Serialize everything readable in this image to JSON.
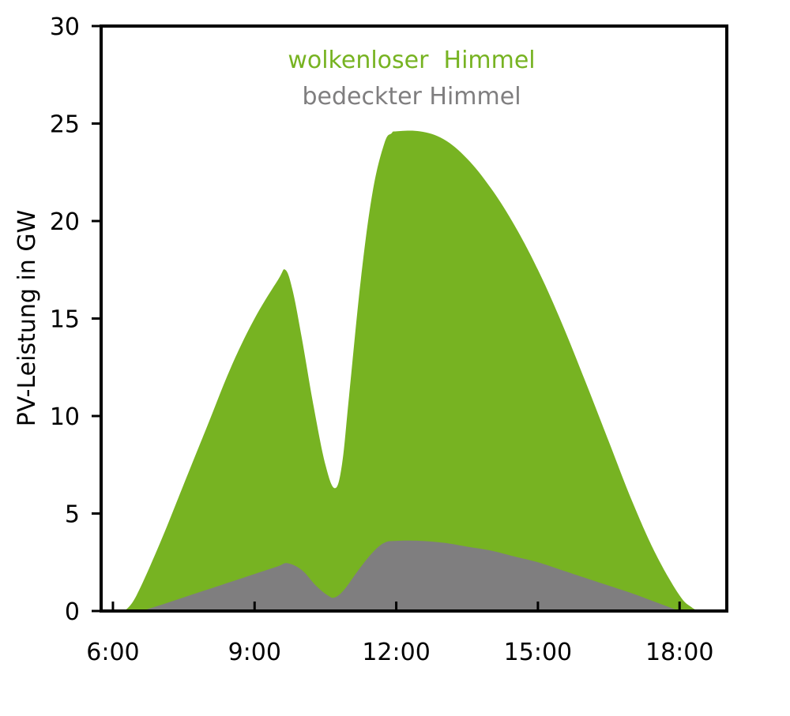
{
  "chart_data": {
    "type": "area",
    "title": "",
    "xlabel": "",
    "ylabel": "PV-Leistung in GW",
    "x_unit": "hour",
    "xlim": [
      5.75,
      19
    ],
    "ylim": [
      0,
      30
    ],
    "x_ticks": [
      6,
      9,
      12,
      15,
      18
    ],
    "x_tick_labels": [
      "6:00",
      "9:00",
      "12:00",
      "15:00",
      "18:00"
    ],
    "y_ticks": [
      0,
      5,
      10,
      15,
      20,
      25,
      30
    ],
    "y_tick_labels": [
      "0",
      "5",
      "10",
      "15",
      "20",
      "25",
      "30"
    ],
    "grid": false,
    "legend_position": "top-center",
    "series": [
      {
        "name": "wolkenloser  Himmel",
        "color": "#77b322",
        "x": [
          6.25,
          6.5,
          7.0,
          7.5,
          8.0,
          8.5,
          9.0,
          9.5,
          9.65,
          9.8,
          10.0,
          10.25,
          10.5,
          10.7,
          10.85,
          11.0,
          11.25,
          11.5,
          11.75,
          11.9,
          12.0,
          12.5,
          13.0,
          13.5,
          14.0,
          14.5,
          15.0,
          15.5,
          16.0,
          16.5,
          17.0,
          17.5,
          18.0,
          18.25,
          18.4
        ],
        "y": [
          0,
          0.8,
          3.5,
          6.5,
          9.5,
          12.5,
          15.0,
          17.0,
          17.5,
          16.5,
          14.0,
          10.5,
          7.5,
          6.3,
          7.5,
          11.0,
          17.0,
          21.5,
          24.0,
          24.5,
          24.6,
          24.6,
          24.2,
          23.2,
          21.7,
          19.8,
          17.5,
          14.8,
          11.8,
          8.7,
          5.6,
          2.9,
          0.8,
          0.2,
          0
        ]
      },
      {
        "name": "bedeckter Himmel",
        "color": "#7f7e7f",
        "x": [
          6.6,
          7.0,
          7.5,
          8.0,
          8.5,
          9.0,
          9.5,
          9.7,
          10.0,
          10.3,
          10.55,
          10.7,
          10.9,
          11.2,
          11.5,
          11.75,
          12.0,
          12.5,
          13.0,
          13.5,
          14.0,
          14.5,
          15.0,
          15.5,
          16.0,
          16.5,
          17.0,
          17.5,
          18.0
        ],
        "y": [
          0,
          0.3,
          0.7,
          1.1,
          1.5,
          1.9,
          2.3,
          2.45,
          2.1,
          1.3,
          0.8,
          0.7,
          1.1,
          2.1,
          3.0,
          3.5,
          3.6,
          3.6,
          3.5,
          3.3,
          3.1,
          2.8,
          2.5,
          2.1,
          1.7,
          1.3,
          0.9,
          0.45,
          0
        ]
      }
    ]
  }
}
